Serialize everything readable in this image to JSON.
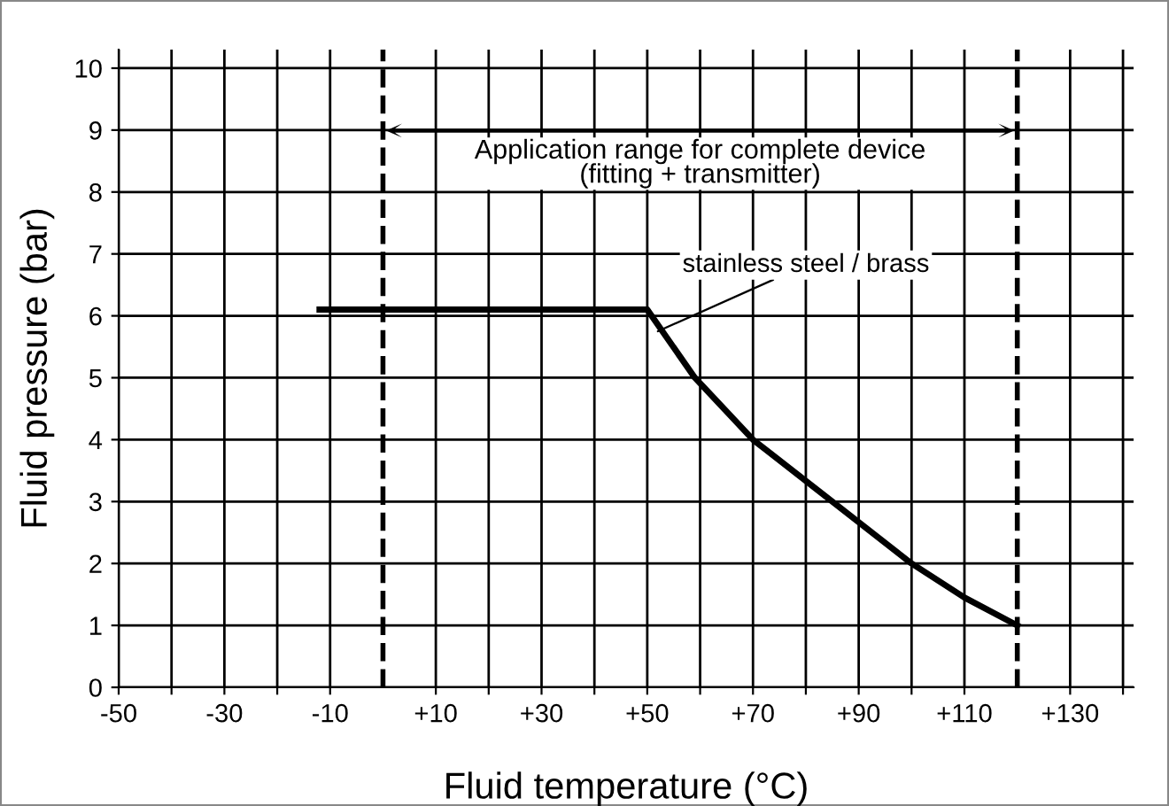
{
  "chart_data": {
    "type": "line",
    "xlabel": "Fluid temperature (°C)",
    "ylabel": "Fluid pressure (bar)",
    "x": [
      -12,
      50,
      59,
      70,
      85,
      100,
      110,
      120
    ],
    "series": [
      {
        "name": "stainless steel / brass",
        "color": "#000000",
        "values": [
          6.1,
          6.1,
          5,
          4,
          3,
          2,
          1.45,
          1
        ]
      }
    ],
    "xlim": [
      -50,
      142
    ],
    "ylim": [
      0,
      10.3
    ],
    "xticks": [
      {
        "value": -50,
        "label": "-50"
      },
      {
        "value": -40,
        "label": null
      },
      {
        "value": -30,
        "label": "-30"
      },
      {
        "value": -20,
        "label": null
      },
      {
        "value": -10,
        "label": "-10"
      },
      {
        "value": 10,
        "label": "+10"
      },
      {
        "value": 20,
        "label": null
      },
      {
        "value": 30,
        "label": "+30"
      },
      {
        "value": 40,
        "label": null
      },
      {
        "value": 50,
        "label": "+50"
      },
      {
        "value": 60,
        "label": null
      },
      {
        "value": 70,
        "label": "+70"
      },
      {
        "value": 80,
        "label": null
      },
      {
        "value": 90,
        "label": "+90"
      },
      {
        "value": 100,
        "label": null
      },
      {
        "value": 110,
        "label": "+110"
      },
      {
        "value": 130,
        "label": "+130"
      },
      {
        "value": 140,
        "label": null
      }
    ],
    "yticks": [
      0,
      1,
      2,
      3,
      4,
      5,
      6,
      7,
      8,
      9,
      10
    ],
    "ref_lines": [
      {
        "axis": "x",
        "value": 0,
        "label": null,
        "color": "#000000",
        "line_style": "dashed"
      },
      {
        "axis": "x",
        "value": 120,
        "label": null,
        "color": "#000000",
        "line_style": "dashed"
      }
    ],
    "annotations": [
      "Application range for complete device\n(fitting + transmitter)"
    ],
    "grid": true,
    "legend": false,
    "marker": "none",
    "line_style": "solid"
  }
}
